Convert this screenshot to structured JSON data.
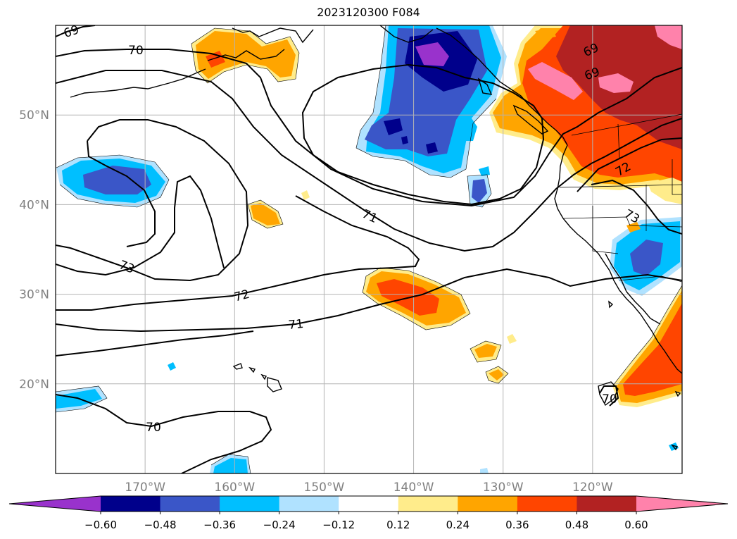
{
  "title": "2023120300 F084",
  "map": {
    "lat_ticks": [
      "50°N",
      "40°N",
      "30°N",
      "20°N"
    ],
    "lat_values": [
      50,
      40,
      30,
      20
    ],
    "lon_ticks": [
      "170°W",
      "160°W",
      "150°W",
      "140°W",
      "130°W",
      "120°W"
    ],
    "lon_values": [
      -170,
      -160,
      -150,
      -140,
      -130,
      -120
    ],
    "extent": {
      "lon_min": -180,
      "lon_max": -110,
      "lat_min": 10,
      "lat_max": 60
    },
    "gridlines": true
  },
  "contour_labels": [
    "69",
    "70",
    "69",
    "69",
    "71",
    "72",
    "73",
    "73",
    "72",
    "71",
    "70",
    "70"
  ],
  "colorbar": {
    "tick_labels": [
      "−0.60",
      "−0.48",
      "−0.36",
      "−0.24",
      "−0.12",
      "0.12",
      "0.24",
      "0.36",
      "0.48",
      "0.60"
    ],
    "levels": [
      -0.6,
      -0.48,
      -0.36,
      -0.24,
      -0.12,
      0.12,
      0.24,
      0.36,
      0.48,
      0.6
    ],
    "colors": [
      "#9932cc",
      "#00008b",
      "#3a56c8",
      "#00bfff",
      "#b0e2ff",
      "#ffffff",
      "#ffec8b",
      "#ffa500",
      "#ff4500",
      "#b22222",
      "#ff82ab"
    ],
    "extend": "both"
  }
}
